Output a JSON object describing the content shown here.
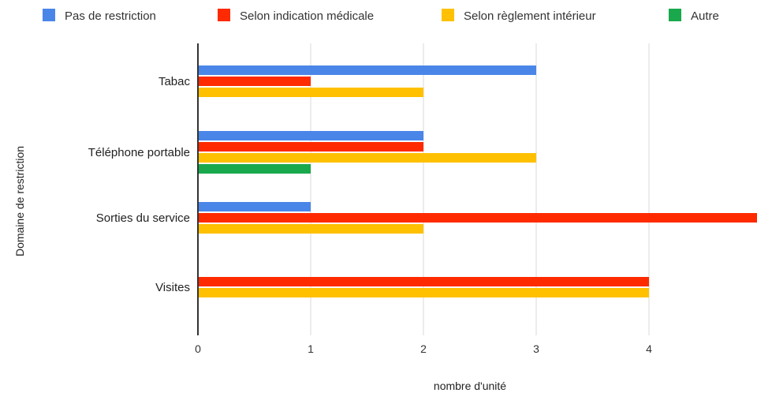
{
  "chart_data": {
    "type": "bar",
    "orientation": "horizontal",
    "title": "",
    "xlabel": "nombre d'unité",
    "ylabel": "Domaine de restriction",
    "categories": [
      "Tabac",
      "Téléphone portable",
      "Sorties du service",
      "Visites"
    ],
    "series": [
      {
        "name": "Pas de restriction",
        "color": "#4a86e8",
        "values": [
          3,
          2,
          1,
          0
        ]
      },
      {
        "name": "Selon indication médicale",
        "color": "#ff2a00",
        "values": [
          1,
          2,
          5,
          4
        ]
      },
      {
        "name": "Selon règlement intérieur",
        "color": "#ffc000",
        "values": [
          2,
          3,
          2,
          4
        ]
      },
      {
        "name": "Autre",
        "color": "#19a84c",
        "values": [
          0,
          1,
          0,
          0
        ]
      }
    ],
    "xlim": [
      0,
      5
    ],
    "xticks": [
      "0",
      "1",
      "2",
      "3",
      "4",
      "5"
    ],
    "grid": true,
    "legend_position": "top"
  }
}
